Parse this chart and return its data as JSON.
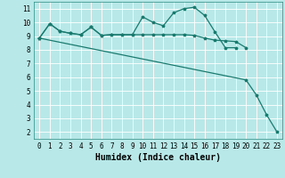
{
  "line1_x": [
    0,
    1,
    2,
    3,
    4,
    5,
    6,
    7,
    8,
    9,
    10,
    11,
    12,
    13,
    14,
    15,
    16,
    17,
    18,
    19
  ],
  "line1_y": [
    8.85,
    9.9,
    9.35,
    9.2,
    9.1,
    9.65,
    9.05,
    9.1,
    9.1,
    9.1,
    10.4,
    10.0,
    9.75,
    10.7,
    11.0,
    11.1,
    10.5,
    9.3,
    8.15,
    8.15
  ],
  "line2_x": [
    0,
    1,
    2,
    3,
    4,
    5,
    6,
    7,
    8,
    9,
    10,
    11,
    12,
    13,
    14,
    15,
    16,
    17,
    18,
    19,
    20
  ],
  "line2_y": [
    8.85,
    9.9,
    9.35,
    9.2,
    9.1,
    9.65,
    9.05,
    9.1,
    9.1,
    9.1,
    9.1,
    9.1,
    9.1,
    9.1,
    9.1,
    9.05,
    8.85,
    8.7,
    8.65,
    8.6,
    8.15
  ],
  "line3_x": [
    0,
    20,
    21,
    22,
    23
  ],
  "line3_y": [
    8.85,
    5.8,
    4.7,
    3.25,
    2.0
  ],
  "bg_color": "#b8e8e8",
  "grid_color": "#d8f0f0",
  "line_color": "#1a7a6e",
  "xlabel": "Humidex (Indice chaleur)",
  "xlabel_fontsize": 7,
  "xlim": [
    -0.5,
    23.5
  ],
  "ylim": [
    1.5,
    11.5
  ],
  "yticks": [
    2,
    3,
    4,
    5,
    6,
    7,
    8,
    9,
    10,
    11
  ],
  "xticks": [
    0,
    1,
    2,
    3,
    4,
    5,
    6,
    7,
    8,
    9,
    10,
    11,
    12,
    13,
    14,
    15,
    16,
    17,
    18,
    19,
    20,
    21,
    22,
    23
  ],
  "tick_fontsize": 5.5,
  "lw": 0.9,
  "ms": 2.5
}
